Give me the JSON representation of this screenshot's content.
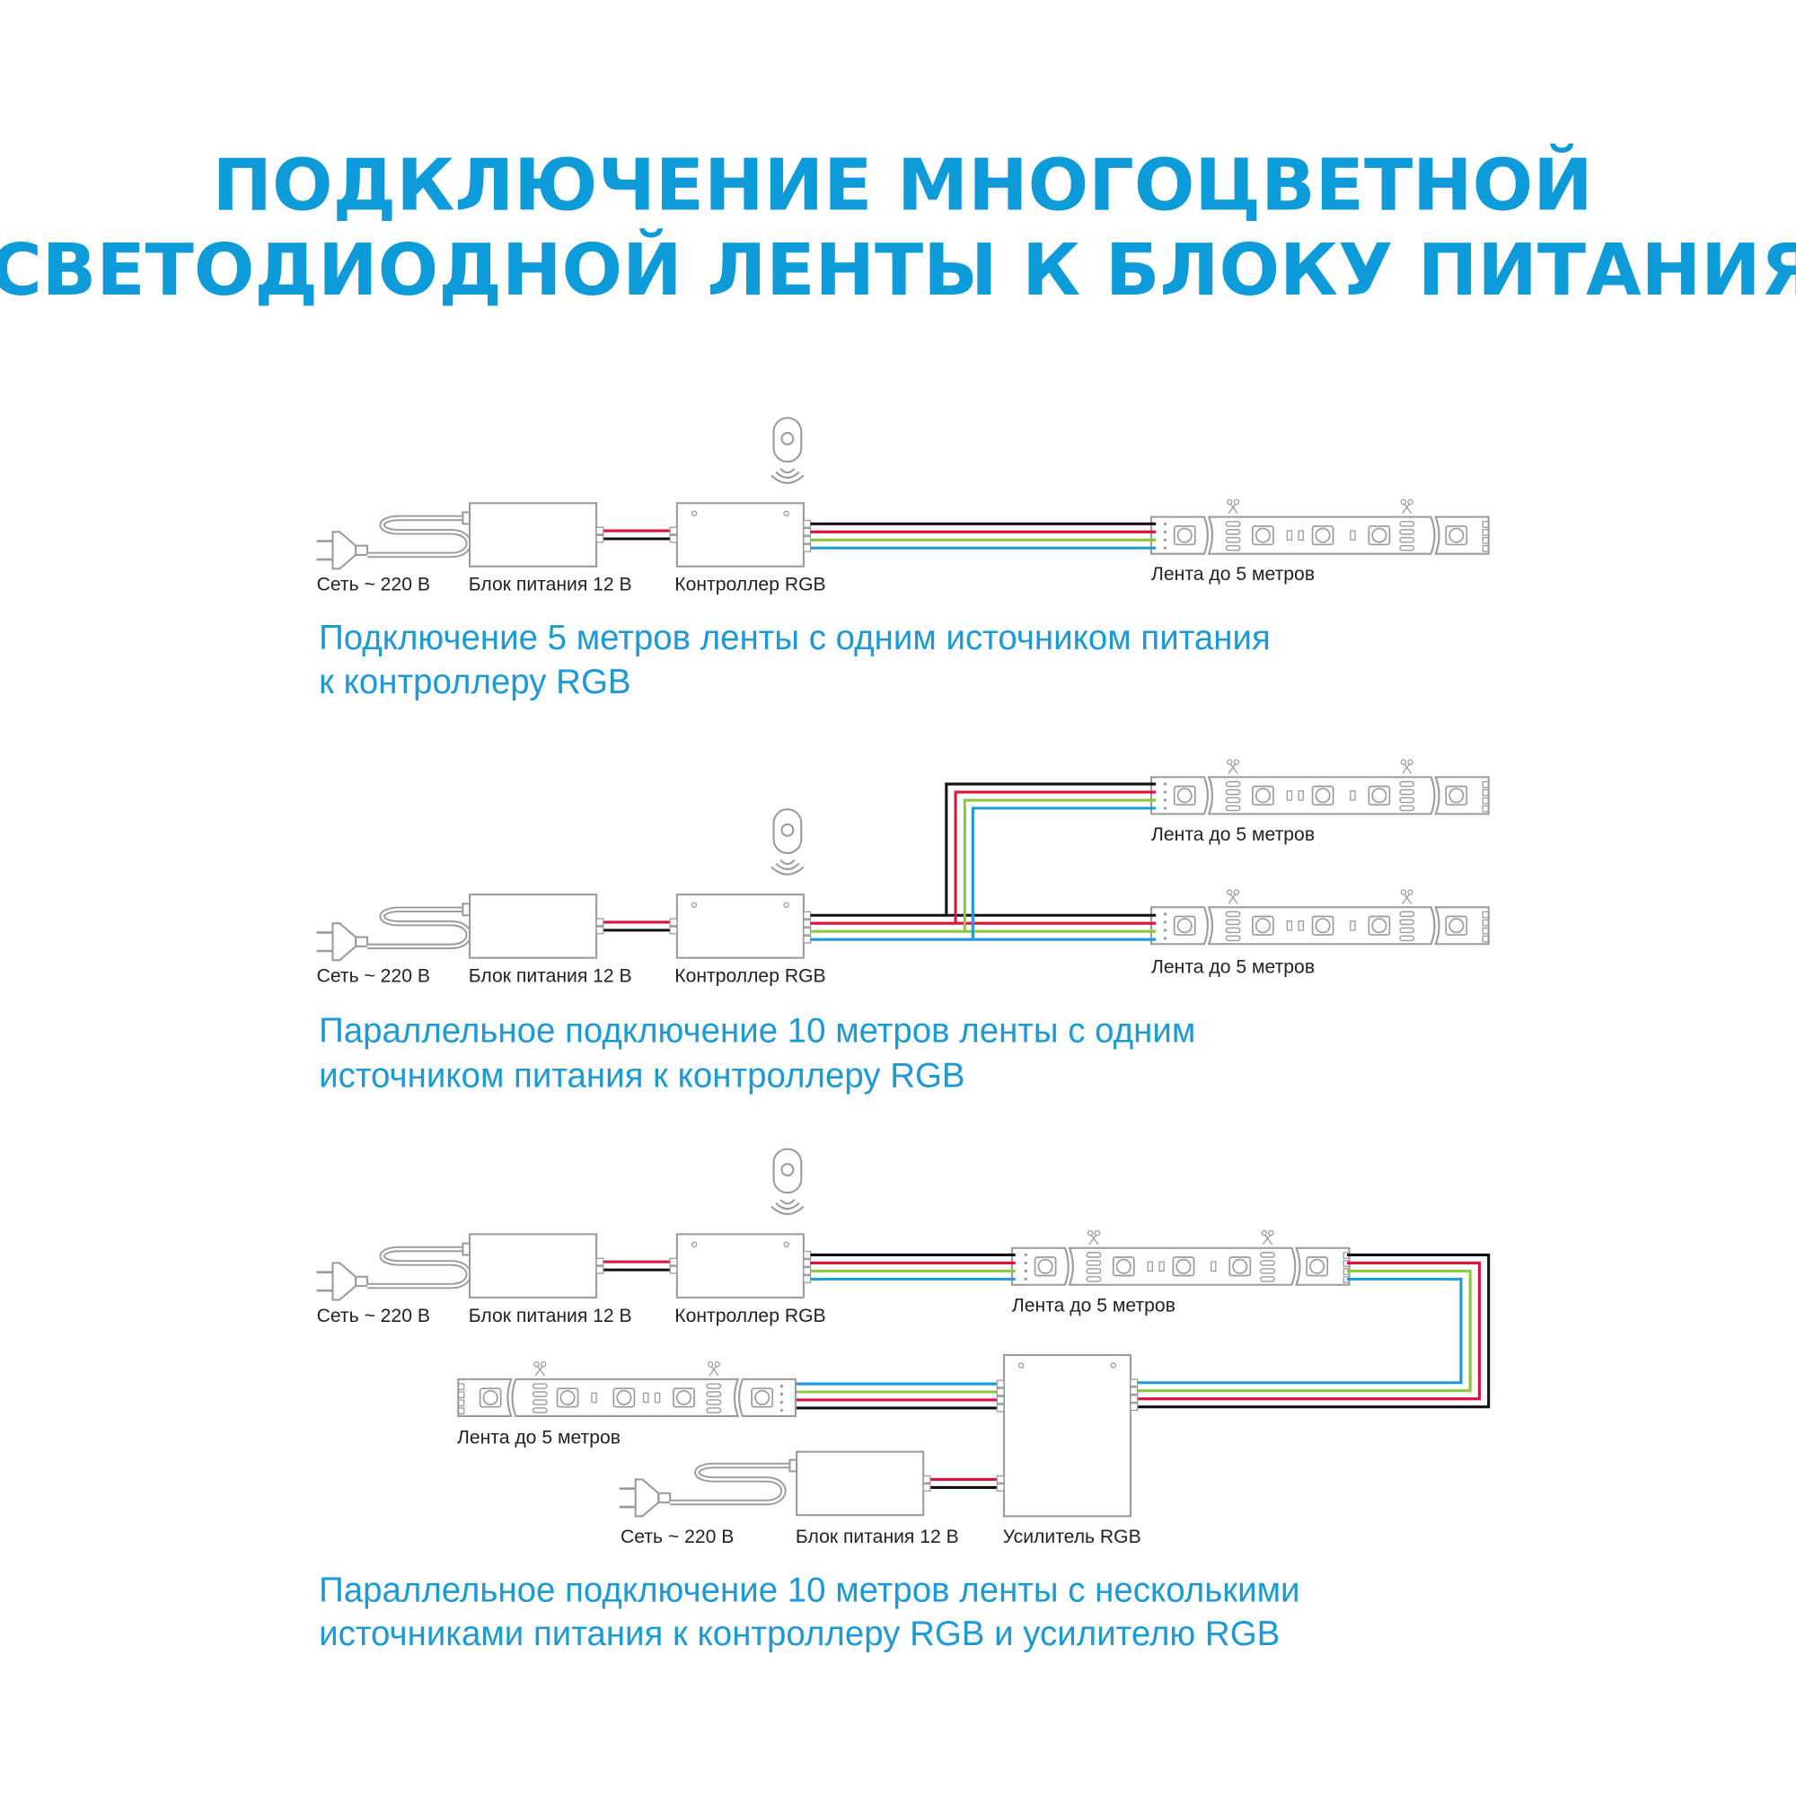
{
  "title": {
    "line1": "ПОДКЛЮЧЕНИЕ МНОГОЦВЕТНОЙ",
    "line2": "СВЕТОДИОДНОЙ ЛЕНТЫ К БЛОКУ ПИТАНИЯ"
  },
  "colors": {
    "accent": "#0d9bd9",
    "outline": "#9a9a9a",
    "wire_black": "#111111",
    "wire_red": "#e0103c",
    "wire_green": "#8cc63f",
    "wire_blue": "#1e9ad6"
  },
  "icons": [
    "plug-icon",
    "power-supply-box",
    "rgb-controller-box",
    "remote-control-icon",
    "led-strip",
    "scissors-icon",
    "rgb-amplifier-box"
  ],
  "labels": {
    "mains": "Сеть ~ 220 В",
    "psu": "Блок питания 12 В",
    "controller": "Контроллер RGB",
    "strip": "Лента до 5 метров",
    "amplifier": "Усилитель RGB"
  },
  "sections": [
    {
      "caption1": "Подключение 5 метров ленты с одним источником питания",
      "caption2": "к контроллеру RGB"
    },
    {
      "caption1": "Параллельное подключение 10 метров ленты с одним",
      "caption2": "источником питания к контроллеру RGB"
    },
    {
      "caption1": "Параллельное подключение 10 метров ленты с несколькими",
      "caption2": "источниками питания к контроллеру RGB и усилителю RGB"
    }
  ]
}
